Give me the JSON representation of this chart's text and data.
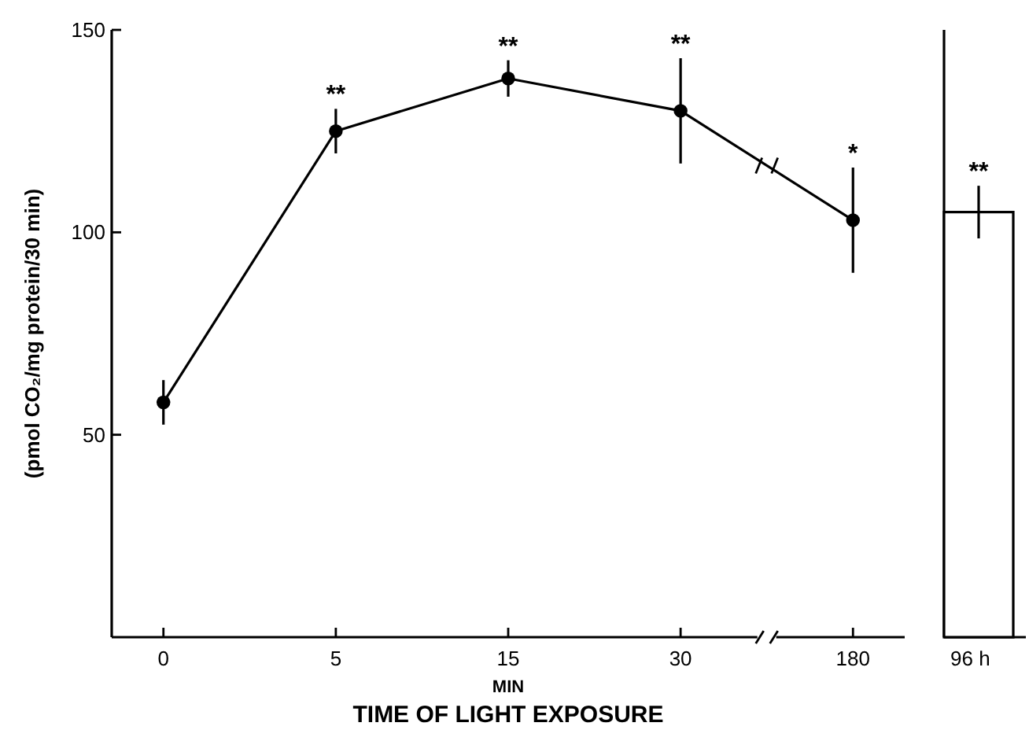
{
  "chart_data": [
    {
      "type": "line",
      "ylabel": "(pmol CO₂/mg protein/30 min)",
      "xlabel": "MIN",
      "categories": [
        "0",
        "5",
        "15",
        "30",
        "180"
      ],
      "ylim": [
        0,
        150
      ],
      "yticks": [
        50,
        100,
        150
      ],
      "marker": "circle",
      "line_style": "solid",
      "series": [
        {
          "color": "#000000",
          "values": [
            58,
            125,
            138,
            130,
            103
          ],
          "errors": [
            5.5,
            5.5,
            4.5,
            13,
            13
          ]
        }
      ],
      "annotations": [
        {
          "text": "**",
          "x": "5",
          "y": 125
        },
        {
          "text": "**",
          "x": "15",
          "y": 138
        },
        {
          "text": "**",
          "x": "30",
          "y": 130
        },
        {
          "text": "*",
          "x": "180",
          "y": 103
        },
        "TIME OF LIGHT EXPOSURE"
      ]
    },
    {
      "type": "bar",
      "categories": [
        "96 h"
      ],
      "ylim": [
        0,
        150
      ],
      "tick_labels": "x",
      "values": [
        105
      ],
      "errors": [
        6.5
      ],
      "color": "#ffffff",
      "annotations": [
        {
          "text": "**",
          "x": "96 h",
          "y": 105
        }
      ]
    }
  ]
}
